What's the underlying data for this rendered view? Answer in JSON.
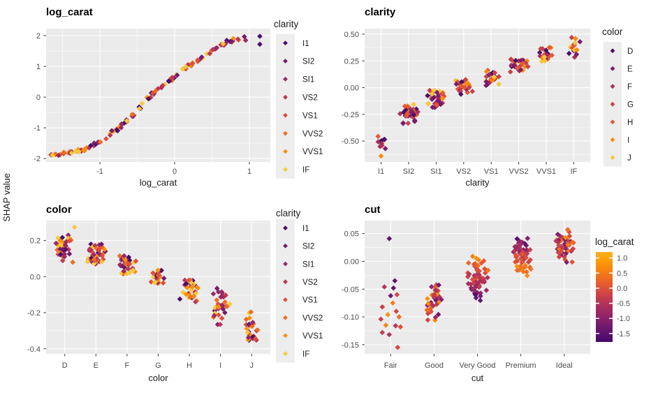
{
  "figure": {
    "ylab": "SHAP value",
    "colors": {
      "background": "#FFFFFF",
      "panel_bg": "#EBEBEB",
      "grid": "#FFFFFF",
      "legend_key_bg": "#EDEDED",
      "tick_text": "#4D4D4D",
      "text": "#1A1A1A",
      "tick_mark": "#333333"
    }
  },
  "palettes": {
    "clarity": {
      "labels": [
        "I1",
        "SI2",
        "SI1",
        "VS2",
        "VS1",
        "VVS2",
        "VVS1",
        "IF"
      ],
      "colors": [
        "#4B0C6B",
        "#731A6E",
        "#9A2865",
        "#BC3754",
        "#DC5039",
        "#EF6E21",
        "#FB9107",
        "#F7C93E"
      ]
    },
    "color": {
      "labels": [
        "D",
        "E",
        "F",
        "G",
        "H",
        "I",
        "J"
      ],
      "colors": [
        "#4B0C6B",
        "#7A1C6C",
        "#A82E5F",
        "#C6404E",
        "#E45833",
        "#F88C09",
        "#F6C73C"
      ]
    },
    "gradient": [
      [
        0.0,
        "#45096C"
      ],
      [
        0.13,
        "#65156E"
      ],
      [
        0.27,
        "#8C2369"
      ],
      [
        0.4,
        "#AC305D"
      ],
      [
        0.53,
        "#CD4347"
      ],
      [
        0.66,
        "#E85F2D"
      ],
      [
        0.8,
        "#F88410"
      ],
      [
        0.92,
        "#FBA007"
      ],
      [
        1.0,
        "#FBB123"
      ]
    ]
  },
  "chart_data": [
    {
      "id": "log_carat",
      "type": "scatter",
      "title": "log_carat",
      "xlabel": "log_carat",
      "color_by": "clarity",
      "x_ticks": [
        -1,
        0,
        1
      ],
      "x_tick_labels": [
        "-1",
        "0",
        "1"
      ],
      "x_minor": [
        -1.5,
        -0.5,
        0.5
      ],
      "y_ticks": [
        2,
        1,
        0,
        -1,
        -2
      ],
      "y_tick_labels": [
        "2",
        "1",
        "0",
        "-1",
        "-2"
      ],
      "y_minor": [
        1.5,
        0.5,
        -0.5,
        -1.5
      ],
      "xlim": [
        -1.72,
        1.28
      ],
      "ylim": [
        -2.11,
        2.23
      ],
      "legend": {
        "type": "discrete",
        "title": "clarity",
        "palette": "clarity"
      },
      "n_points": 125,
      "x_jitter": 0.05,
      "y_jitter": 0.055,
      "trend": [
        [
          -1.65,
          -1.9
        ],
        [
          -1.5,
          -1.84
        ],
        [
          -1.35,
          -1.79
        ],
        [
          -1.2,
          -1.7
        ],
        [
          -1.05,
          -1.52
        ],
        [
          -0.95,
          -1.38
        ],
        [
          -0.85,
          -1.17
        ],
        [
          -0.75,
          -1.02
        ],
        [
          -0.65,
          -0.78
        ],
        [
          -0.55,
          -0.55
        ],
        [
          -0.47,
          -0.35
        ],
        [
          -0.4,
          -0.15
        ],
        [
          -0.33,
          0.0
        ],
        [
          -0.27,
          0.15
        ],
        [
          -0.2,
          0.3
        ],
        [
          -0.12,
          0.45
        ],
        [
          -0.05,
          0.58
        ],
        [
          0.02,
          0.72
        ],
        [
          0.1,
          0.88
        ],
        [
          0.18,
          1.0
        ],
        [
          0.26,
          1.12
        ],
        [
          0.34,
          1.25
        ],
        [
          0.42,
          1.4
        ],
        [
          0.5,
          1.52
        ],
        [
          0.6,
          1.66
        ],
        [
          0.7,
          1.78
        ],
        [
          0.8,
          1.87
        ],
        [
          0.93,
          1.94
        ]
      ],
      "extra_points": [
        [
          0.95,
          1.85,
          2
        ],
        [
          1.14,
          1.98,
          0
        ],
        [
          1.14,
          1.72,
          0
        ]
      ],
      "seed": 20240
    },
    {
      "id": "clarity",
      "type": "jitter",
      "title": "clarity",
      "xlabel": "clarity",
      "color_by": "color",
      "categories": [
        "I1",
        "SI2",
        "SI1",
        "VS2",
        "VS1",
        "VVS2",
        "VVS1",
        "IF"
      ],
      "y_ticks": [
        0.5,
        0.25,
        0,
        -0.25,
        -0.5
      ],
      "y_tick_labels": [
        "0.50",
        "0.25",
        "0.00",
        "-0.25",
        "-0.50"
      ],
      "y_minor": [
        0.375,
        0.125,
        -0.125,
        -0.375,
        -0.625
      ],
      "ylim": [
        -0.695,
        0.552
      ],
      "legend": {
        "type": "discrete",
        "title": "color",
        "palette": "color"
      },
      "clusters": [
        {
          "cat": "I1",
          "n": 12,
          "center": -0.5,
          "spread": 0.07,
          "hw": 9
        },
        {
          "cat": "SI2",
          "n": 38,
          "center": -0.245,
          "spread": 0.09,
          "hw": 15
        },
        {
          "cat": "SI1",
          "n": 38,
          "center": -0.105,
          "spread": 0.08,
          "hw": 15
        },
        {
          "cat": "VS2",
          "n": 32,
          "center": 0.025,
          "spread": 0.07,
          "hw": 14
        },
        {
          "cat": "VS1",
          "n": 30,
          "center": 0.095,
          "spread": 0.075,
          "hw": 14
        },
        {
          "cat": "VVS2",
          "n": 30,
          "center": 0.21,
          "spread": 0.075,
          "hw": 14
        },
        {
          "cat": "VVS1",
          "n": 26,
          "center": 0.3,
          "spread": 0.075,
          "hw": 13
        },
        {
          "cat": "IF",
          "n": 16,
          "center": 0.375,
          "spread": 0.1,
          "hw": 11
        }
      ],
      "extra_points": [
        {
          "cat": 0,
          "y": -0.64,
          "color": 5,
          "dx": 0
        },
        {
          "cat": 3,
          "y": -0.062,
          "color": 0,
          "dx": -4
        }
      ],
      "seed": 7391
    },
    {
      "id": "color",
      "type": "jitter",
      "title": "color",
      "xlabel": "color",
      "color_by": "clarity",
      "categories": [
        "D",
        "E",
        "F",
        "G",
        "H",
        "I",
        "J"
      ],
      "y_ticks": [
        0.2,
        0,
        -0.2,
        -0.4
      ],
      "y_tick_labels": [
        "0.2",
        "0.0",
        "-0.2",
        "-0.4"
      ],
      "y_minor": [
        0.3,
        0.1,
        -0.1,
        -0.3
      ],
      "ylim": [
        -0.428,
        0.311
      ],
      "legend": {
        "type": "discrete",
        "title": "clarity",
        "palette": "clarity"
      },
      "clusters": [
        {
          "cat": "D",
          "n": 42,
          "center": 0.155,
          "spread": 0.075,
          "hw": 15
        },
        {
          "cat": "E",
          "n": 40,
          "center": 0.115,
          "spread": 0.065,
          "hw": 15
        },
        {
          "cat": "F",
          "n": 36,
          "center": 0.065,
          "spread": 0.05,
          "hw": 15
        },
        {
          "cat": "G",
          "n": 30,
          "center": 0.005,
          "spread": 0.04,
          "hw": 12
        },
        {
          "cat": "H",
          "n": 36,
          "center": -0.085,
          "spread": 0.065,
          "hw": 15
        },
        {
          "cat": "I",
          "n": 32,
          "center": -0.175,
          "spread": 0.09,
          "hw": 15
        },
        {
          "cat": "J",
          "n": 26,
          "center": -0.29,
          "spread": 0.1,
          "hw": 14
        }
      ],
      "extra_points": [
        {
          "cat": 0,
          "y": 0.274,
          "color": 7,
          "dx": 14
        },
        {
          "cat": 5,
          "y": -0.065,
          "color": 1,
          "dx": -5
        }
      ],
      "seed": 5150
    },
    {
      "id": "cut",
      "type": "jitter_gradient",
      "title": "cut",
      "xlabel": "cut",
      "color_by": "log_carat",
      "categories": [
        "Fair",
        "Good",
        "Very Good",
        "Premium",
        "Ideal"
      ],
      "y_ticks": [
        0.05,
        0,
        -0.05,
        -0.1,
        -0.15
      ],
      "y_tick_labels": [
        "0.05",
        "0.00",
        "-0.05",
        "-0.10",
        "-0.15"
      ],
      "y_minor": [
        0.025,
        -0.025,
        -0.075,
        -0.125
      ],
      "ylim": [
        -0.1665,
        0.0735
      ],
      "legend": {
        "type": "colorbar",
        "title": "log_carat",
        "ticks": [
          1.0,
          0.5,
          0.0,
          -0.5,
          -1.0,
          -1.5
        ],
        "tick_labels": [
          "1.0",
          "0.5",
          "0.0",
          "-0.5",
          "-1.0",
          "-1.5"
        ],
        "range": [
          -1.78,
          1.2
        ]
      },
      "fair_points": [
        [
          0.041,
          0.1,
          -2
        ],
        [
          -0.035,
          0.14,
          6
        ],
        [
          -0.046,
          0.45,
          -9
        ],
        [
          -0.048,
          0.12,
          4
        ],
        [
          -0.06,
          0.55,
          9
        ],
        [
          -0.062,
          0.16,
          0
        ],
        [
          -0.075,
          0.78,
          3
        ],
        [
          -0.082,
          0.5,
          -12
        ],
        [
          -0.09,
          0.55,
          8
        ],
        [
          -0.096,
          0.85,
          -4
        ],
        [
          -0.1,
          0.72,
          12
        ],
        [
          -0.104,
          0.5,
          -14
        ],
        [
          -0.115,
          0.8,
          -7
        ],
        [
          -0.116,
          0.45,
          7
        ],
        [
          -0.118,
          0.6,
          14
        ],
        [
          -0.128,
          0.5,
          -12
        ],
        [
          -0.132,
          0.42,
          -2
        ],
        [
          -0.155,
          0.55,
          10
        ]
      ],
      "clusters": [
        {
          "cat": "Good",
          "n": 40,
          "min": -0.115,
          "max": -0.018,
          "trend": "mixed",
          "hw": 15
        },
        {
          "cat": "Very Good",
          "n": 62,
          "min": -0.075,
          "max": 0.018,
          "trend": "pos",
          "hw": 16
        },
        {
          "cat": "Premium",
          "n": 62,
          "min": -0.03,
          "max": 0.05,
          "trend": "neg",
          "hw": 16
        },
        {
          "cat": "Ideal",
          "n": 52,
          "min": -0.005,
          "max": 0.062,
          "trend": "mixed_warm",
          "hw": 16
        }
      ],
      "seed": 9042
    }
  ]
}
